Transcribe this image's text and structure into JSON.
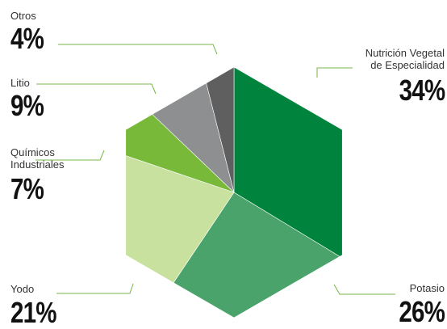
{
  "chart_data": {
    "type": "pie",
    "shape": "hexagon",
    "categories": [
      "Nutrición Vegetal de Especialidad",
      "Potasio",
      "Yodo",
      "Químicos Industriales",
      "Litio",
      "Otros"
    ],
    "values": [
      34,
      26,
      21,
      7,
      9,
      4
    ],
    "value_labels": [
      "34%",
      "26%",
      "21%",
      "7%",
      "9%",
      "4%"
    ],
    "label_lines": [
      [
        "Nutrición Vegetal",
        "de Especialidad"
      ],
      [
        "Potasio"
      ],
      [
        "Yodo"
      ],
      [
        "Químicos",
        "Industriales"
      ],
      [
        "Litio"
      ],
      [
        "Otros"
      ]
    ],
    "colors": [
      "#00843d",
      "#4aa36b",
      "#c8e19f",
      "#78b93a",
      "#8d8f90",
      "#5f5f5f"
    ],
    "leader_color": "#7ab648",
    "title": "",
    "legend": "none"
  }
}
